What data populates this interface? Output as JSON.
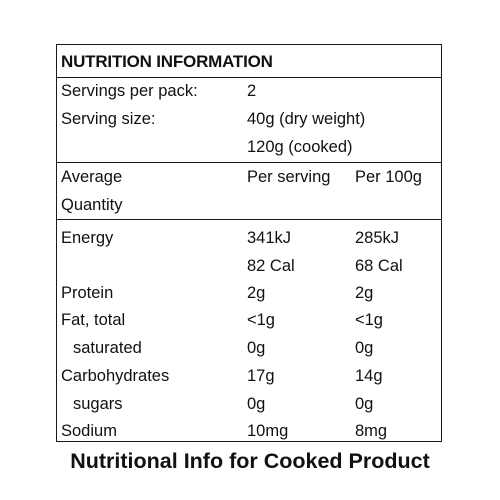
{
  "panel": {
    "heading": "NUTRITION INFORMATION",
    "servings_label": "Servings per pack:",
    "servings_value": "2",
    "serving_size_label": "Serving size:",
    "serving_size_dry": "40g (dry weight)",
    "serving_size_cooked": "120g (cooked)",
    "col_quantity_line1": "Average",
    "col_quantity_line2": "Quantity",
    "col_per_serving": "Per serving",
    "col_per_100g": "Per 100g",
    "rows": [
      {
        "label": "Energy",
        "per_serving": "341kJ",
        "per_100g": "285kJ"
      },
      {
        "label": "",
        "per_serving": "82 Cal",
        "per_100g": "68 Cal"
      },
      {
        "label": "Protein",
        "per_serving": "2g",
        "per_100g": "2g"
      },
      {
        "label": "Fat, total",
        "per_serving": "<1g",
        "per_100g": "<1g"
      },
      {
        "label": "saturated",
        "per_serving": "0g",
        "per_100g": "0g"
      },
      {
        "label": "Carbohydrates",
        "per_serving": "17g",
        "per_100g": "14g"
      },
      {
        "label": "sugars",
        "per_serving": "0g",
        "per_100g": "0g"
      },
      {
        "label": "Sodium",
        "per_serving": "10mg",
        "per_100g": "8mg"
      }
    ]
  },
  "caption": "Nutritional Info for Cooked Product"
}
